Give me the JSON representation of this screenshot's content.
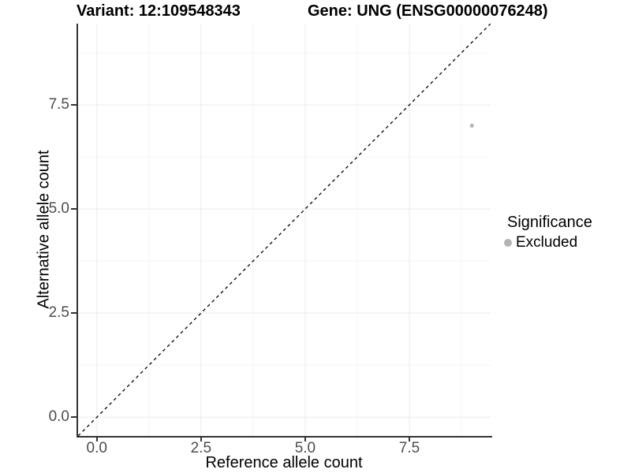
{
  "colors": {
    "background": "#ffffff",
    "grid_major": "#ebebeb",
    "grid_minor": "#f4f4f4",
    "axis_line": "#333333",
    "tick_label": "#4d4d4d",
    "text": "#000000",
    "point": "#b4b4b4",
    "reference_line": "#000000"
  },
  "chart_data": {
    "type": "scatter",
    "title_left": "Variant: 12:109548343",
    "title_right": "Gene: UNG (ENSG00000076248)",
    "xlabel": "Reference allele count",
    "ylabel": "Alternative allele count",
    "xlim": [
      -0.45,
      9.45
    ],
    "ylim": [
      -0.45,
      9.45
    ],
    "x_ticks": {
      "values": [
        0,
        2.5,
        5,
        7.5
      ],
      "labels": [
        "0.0",
        "2.5",
        "5.0",
        "7.5"
      ]
    },
    "y_ticks": {
      "values": [
        0,
        2.5,
        5,
        7.5
      ],
      "labels": [
        "0.0",
        "2.5",
        "5.0",
        "7.5"
      ]
    },
    "x_minor_ticks": [
      1.25,
      3.75,
      6.25,
      8.75
    ],
    "y_minor_ticks": [
      1.25,
      3.75,
      6.25,
      8.75
    ],
    "grid": true,
    "series": [
      {
        "name": "Excluded",
        "color": "#b4b4b4",
        "points": [
          {
            "x": 9,
            "y": 7
          }
        ]
      }
    ],
    "reference_line": {
      "equation": "y = x",
      "style": "dashed",
      "color": "#000000"
    },
    "legend": {
      "title": "Significance",
      "position": "right",
      "entries": [
        "Excluded"
      ]
    }
  }
}
